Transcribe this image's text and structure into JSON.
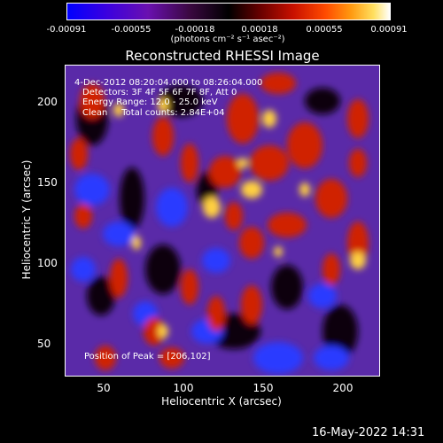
{
  "colorbar": {
    "ticks": [
      "-0.00091",
      "-0.00055",
      "-0.00018",
      "0.00018",
      "0.00055",
      "0.00091"
    ],
    "units": "(photons cm⁻² s⁻¹ asec⁻²)"
  },
  "title": "Reconstructed RHESSI Image",
  "annotations": {
    "time": "4-Dec-2012 08:20:04.000 to 08:26:04.000",
    "detectors": "Detectors: 3F 4F 5F 6F 7F 8F, Att 0",
    "energy": "Energy Range: 12.0 - 25.0 keV",
    "method": "Clean     Total counts: 2.84E+04",
    "peak": "Position of Peak = [206,102]"
  },
  "axes": {
    "xlabel": "Heliocentric X (arcsec)",
    "ylabel": "Heliocentric Y (arcsec)",
    "xticks": [
      "50",
      "100",
      "150",
      "200"
    ],
    "yticks": [
      "50",
      "100",
      "150",
      "200"
    ]
  },
  "timestamp": "16-May-2022 14:31",
  "colors": {
    "background": "#000000",
    "map_base": "#5a2aa8",
    "cold": "#2a3aff",
    "warm": "#d02000",
    "hot": "#ffd040"
  }
}
